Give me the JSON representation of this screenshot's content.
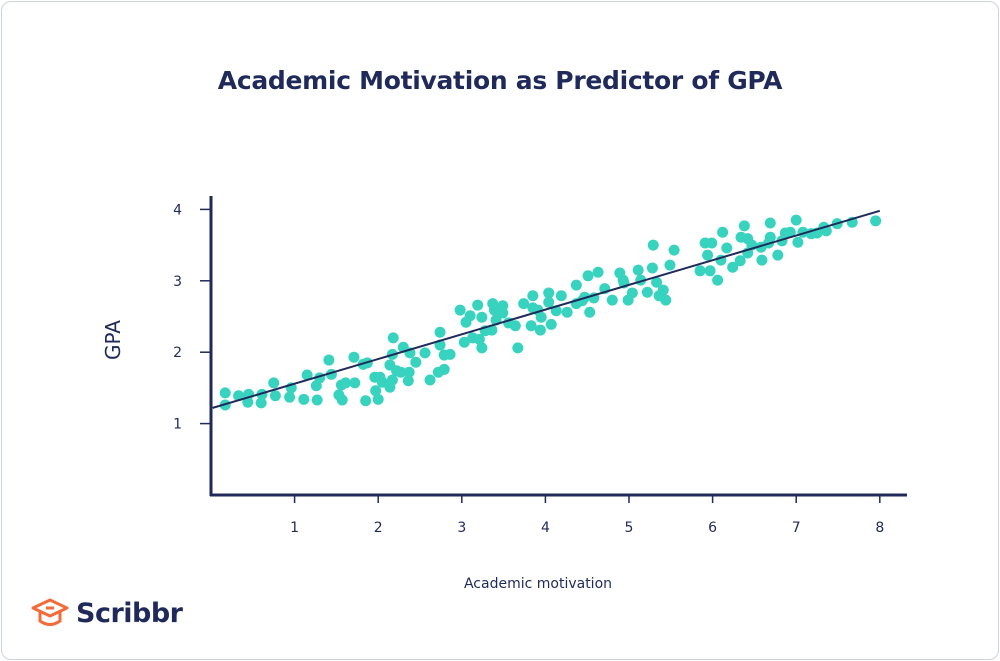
{
  "colors": {
    "axis": "#1f2a5a",
    "points": "#38d3bf",
    "brand": "#f26b3a",
    "text": "#1f2a5a"
  },
  "brand": {
    "name": "Scribbr",
    "icon": "graduation-cap-icon"
  },
  "chart_data": {
    "type": "scatter",
    "title": "Academic Motivation as Predictor of GPA",
    "xlabel": "Academic motivation",
    "ylabel": "GPA",
    "xlim": [
      0,
      8.3
    ],
    "ylim": [
      0,
      4.15
    ],
    "xticks": [
      1,
      2,
      3,
      4,
      5,
      6,
      7,
      8
    ],
    "yticks": [
      1,
      2,
      3,
      4
    ],
    "grid": false,
    "trendline": {
      "x": [
        0.02,
        8.0
      ],
      "y": [
        1.22,
        3.98
      ]
    },
    "points": [
      [
        0.17,
        1.43
      ],
      [
        0.17,
        1.26
      ],
      [
        0.33,
        1.39
      ],
      [
        0.45,
        1.41
      ],
      [
        0.44,
        1.3
      ],
      [
        0.61,
        1.41
      ],
      [
        0.6,
        1.29
      ],
      [
        0.75,
        1.57
      ],
      [
        0.77,
        1.39
      ],
      [
        0.96,
        1.5
      ],
      [
        0.94,
        1.37
      ],
      [
        1.11,
        1.34
      ],
      [
        1.15,
        1.68
      ],
      [
        1.27,
        1.33
      ],
      [
        1.26,
        1.53
      ],
      [
        1.3,
        1.64
      ],
      [
        1.41,
        1.89
      ],
      [
        1.44,
        1.69
      ],
      [
        1.57,
        1.33
      ],
      [
        1.56,
        1.54
      ],
      [
        1.61,
        1.57
      ],
      [
        1.53,
        1.4
      ],
      [
        1.71,
        1.93
      ],
      [
        1.72,
        1.57
      ],
      [
        1.82,
        1.83
      ],
      [
        1.85,
        1.32
      ],
      [
        1.87,
        1.85
      ],
      [
        1.96,
        1.65
      ],
      [
        2.0,
        1.34
      ],
      [
        1.97,
        1.46
      ],
      [
        2.02,
        1.65
      ],
      [
        2.05,
        1.58
      ],
      [
        2.14,
        1.51
      ],
      [
        2.17,
        1.61
      ],
      [
        2.17,
        1.97
      ],
      [
        2.18,
        2.2
      ],
      [
        2.14,
        1.82
      ],
      [
        2.22,
        1.74
      ],
      [
        2.27,
        1.72
      ],
      [
        2.3,
        2.07
      ],
      [
        2.38,
        1.99
      ],
      [
        2.37,
        1.72
      ],
      [
        2.36,
        1.6
      ],
      [
        2.45,
        1.86
      ],
      [
        2.56,
        1.99
      ],
      [
        2.62,
        1.61
      ],
      [
        2.72,
        1.72
      ],
      [
        2.74,
        2.1
      ],
      [
        2.74,
        2.28
      ],
      [
        2.79,
        1.76
      ],
      [
        2.79,
        1.96
      ],
      [
        2.86,
        1.97
      ],
      [
        2.98,
        2.59
      ],
      [
        3.03,
        2.14
      ],
      [
        3.05,
        2.42
      ],
      [
        3.1,
        2.51
      ],
      [
        3.13,
        2.2
      ],
      [
        3.21,
        2.18
      ],
      [
        3.19,
        2.66
      ],
      [
        3.24,
        2.06
      ],
      [
        3.24,
        2.49
      ],
      [
        3.28,
        2.3
      ],
      [
        3.36,
        2.31
      ],
      [
        3.39,
        2.59
      ],
      [
        3.41,
        2.45
      ],
      [
        3.37,
        2.68
      ],
      [
        3.49,
        2.55
      ],
      [
        3.49,
        2.65
      ],
      [
        3.56,
        2.41
      ],
      [
        3.64,
        2.37
      ],
      [
        3.67,
        2.06
      ],
      [
        3.74,
        2.68
      ],
      [
        3.83,
        2.37
      ],
      [
        3.85,
        2.79
      ],
      [
        3.85,
        2.62
      ],
      [
        3.91,
        2.59
      ],
      [
        3.94,
        2.31
      ],
      [
        3.95,
        2.49
      ],
      [
        4.04,
        2.83
      ],
      [
        4.04,
        2.7
      ],
      [
        4.07,
        2.39
      ],
      [
        4.13,
        2.58
      ],
      [
        4.19,
        2.79
      ],
      [
        4.26,
        2.56
      ],
      [
        4.37,
        2.94
      ],
      [
        4.37,
        2.68
      ],
      [
        4.44,
        2.72
      ],
      [
        4.47,
        2.77
      ],
      [
        4.51,
        3.07
      ],
      [
        4.53,
        2.56
      ],
      [
        4.58,
        2.76
      ],
      [
        4.63,
        3.12
      ],
      [
        4.71,
        2.89
      ],
      [
        4.8,
        2.73
      ],
      [
        4.89,
        3.11
      ],
      [
        4.93,
        3.01
      ],
      [
        4.94,
        2.97
      ],
      [
        4.99,
        2.73
      ],
      [
        5.04,
        2.83
      ],
      [
        5.11,
        3.15
      ],
      [
        5.14,
        3.01
      ],
      [
        5.22,
        2.84
      ],
      [
        5.28,
        3.18
      ],
      [
        5.29,
        3.5
      ],
      [
        5.33,
        2.98
      ],
      [
        5.36,
        2.79
      ],
      [
        5.41,
        2.87
      ],
      [
        5.44,
        2.73
      ],
      [
        5.49,
        3.22
      ],
      [
        5.54,
        3.43
      ],
      [
        5.85,
        3.14
      ],
      [
        5.91,
        3.53
      ],
      [
        5.94,
        3.36
      ],
      [
        5.97,
        3.14
      ],
      [
        5.99,
        3.53
      ],
      [
        6.06,
        3.01
      ],
      [
        6.1,
        3.29
      ],
      [
        6.12,
        3.68
      ],
      [
        6.17,
        3.46
      ],
      [
        6.24,
        3.19
      ],
      [
        6.33,
        3.28
      ],
      [
        6.34,
        3.61
      ],
      [
        6.38,
        3.77
      ],
      [
        6.42,
        3.59
      ],
      [
        6.42,
        3.39
      ],
      [
        6.47,
        3.5
      ],
      [
        6.58,
        3.47
      ],
      [
        6.59,
        3.29
      ],
      [
        6.67,
        3.53
      ],
      [
        6.69,
        3.81
      ],
      [
        6.69,
        3.61
      ],
      [
        6.78,
        3.36
      ],
      [
        6.83,
        3.56
      ],
      [
        6.87,
        3.67
      ],
      [
        6.93,
        3.68
      ],
      [
        7.0,
        3.85
      ],
      [
        7.02,
        3.54
      ],
      [
        7.08,
        3.68
      ],
      [
        7.18,
        3.66
      ],
      [
        7.25,
        3.67
      ],
      [
        7.33,
        3.75
      ],
      [
        7.36,
        3.7
      ],
      [
        7.49,
        3.8
      ],
      [
        7.67,
        3.82
      ],
      [
        7.95,
        3.84
      ]
    ]
  }
}
